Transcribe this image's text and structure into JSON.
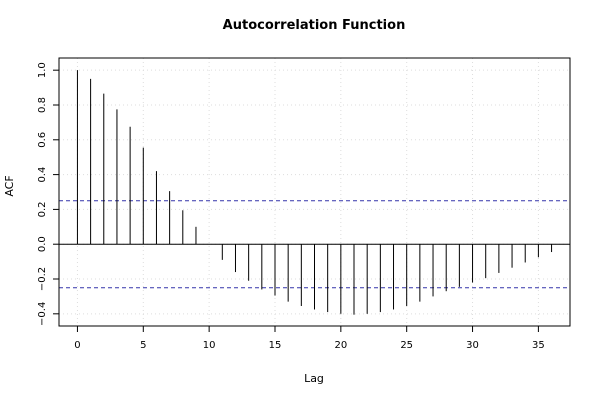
{
  "chart_data": {
    "type": "bar",
    "title": "Autocorrelation Function",
    "xlabel": "Lag",
    "ylabel": "ACF",
    "xlim": [
      -1.4,
      37.4
    ],
    "ylim": [
      -0.47,
      1.07
    ],
    "xticks": [
      0,
      5,
      10,
      15,
      20,
      25,
      30,
      35
    ],
    "yticks": [
      -0.4,
      -0.2,
      0.0,
      0.2,
      0.4,
      0.6,
      0.8,
      1.0
    ],
    "xtick_labels": [
      "0",
      "5",
      "10",
      "15",
      "20",
      "25",
      "30",
      "35"
    ],
    "ytick_labels": [
      "−0.4",
      "−0.2",
      "0.0",
      "0.2",
      "0.4",
      "0.6",
      "0.8",
      "1.0"
    ],
    "grid": true,
    "confidence_bounds": [
      0.25,
      -0.25
    ],
    "colors": {
      "bars": "#000000",
      "bounds": "#3333aa",
      "grid": "#dddddd",
      "frame": "#000000"
    },
    "x": [
      0,
      1,
      2,
      3,
      4,
      5,
      6,
      7,
      8,
      9,
      10,
      11,
      12,
      13,
      14,
      15,
      16,
      17,
      18,
      19,
      20,
      21,
      22,
      23,
      24,
      25,
      26,
      27,
      28,
      29,
      30,
      31,
      32,
      33,
      34,
      35,
      36
    ],
    "values": [
      1.0,
      0.95,
      0.865,
      0.775,
      0.675,
      0.555,
      0.42,
      0.305,
      0.195,
      0.1,
      0.0,
      -0.09,
      -0.16,
      -0.21,
      -0.26,
      -0.295,
      -0.33,
      -0.355,
      -0.375,
      -0.39,
      -0.4,
      -0.405,
      -0.4,
      -0.39,
      -0.375,
      -0.355,
      -0.33,
      -0.3,
      -0.27,
      -0.245,
      -0.22,
      -0.195,
      -0.165,
      -0.135,
      -0.105,
      -0.075,
      -0.045
    ]
  }
}
